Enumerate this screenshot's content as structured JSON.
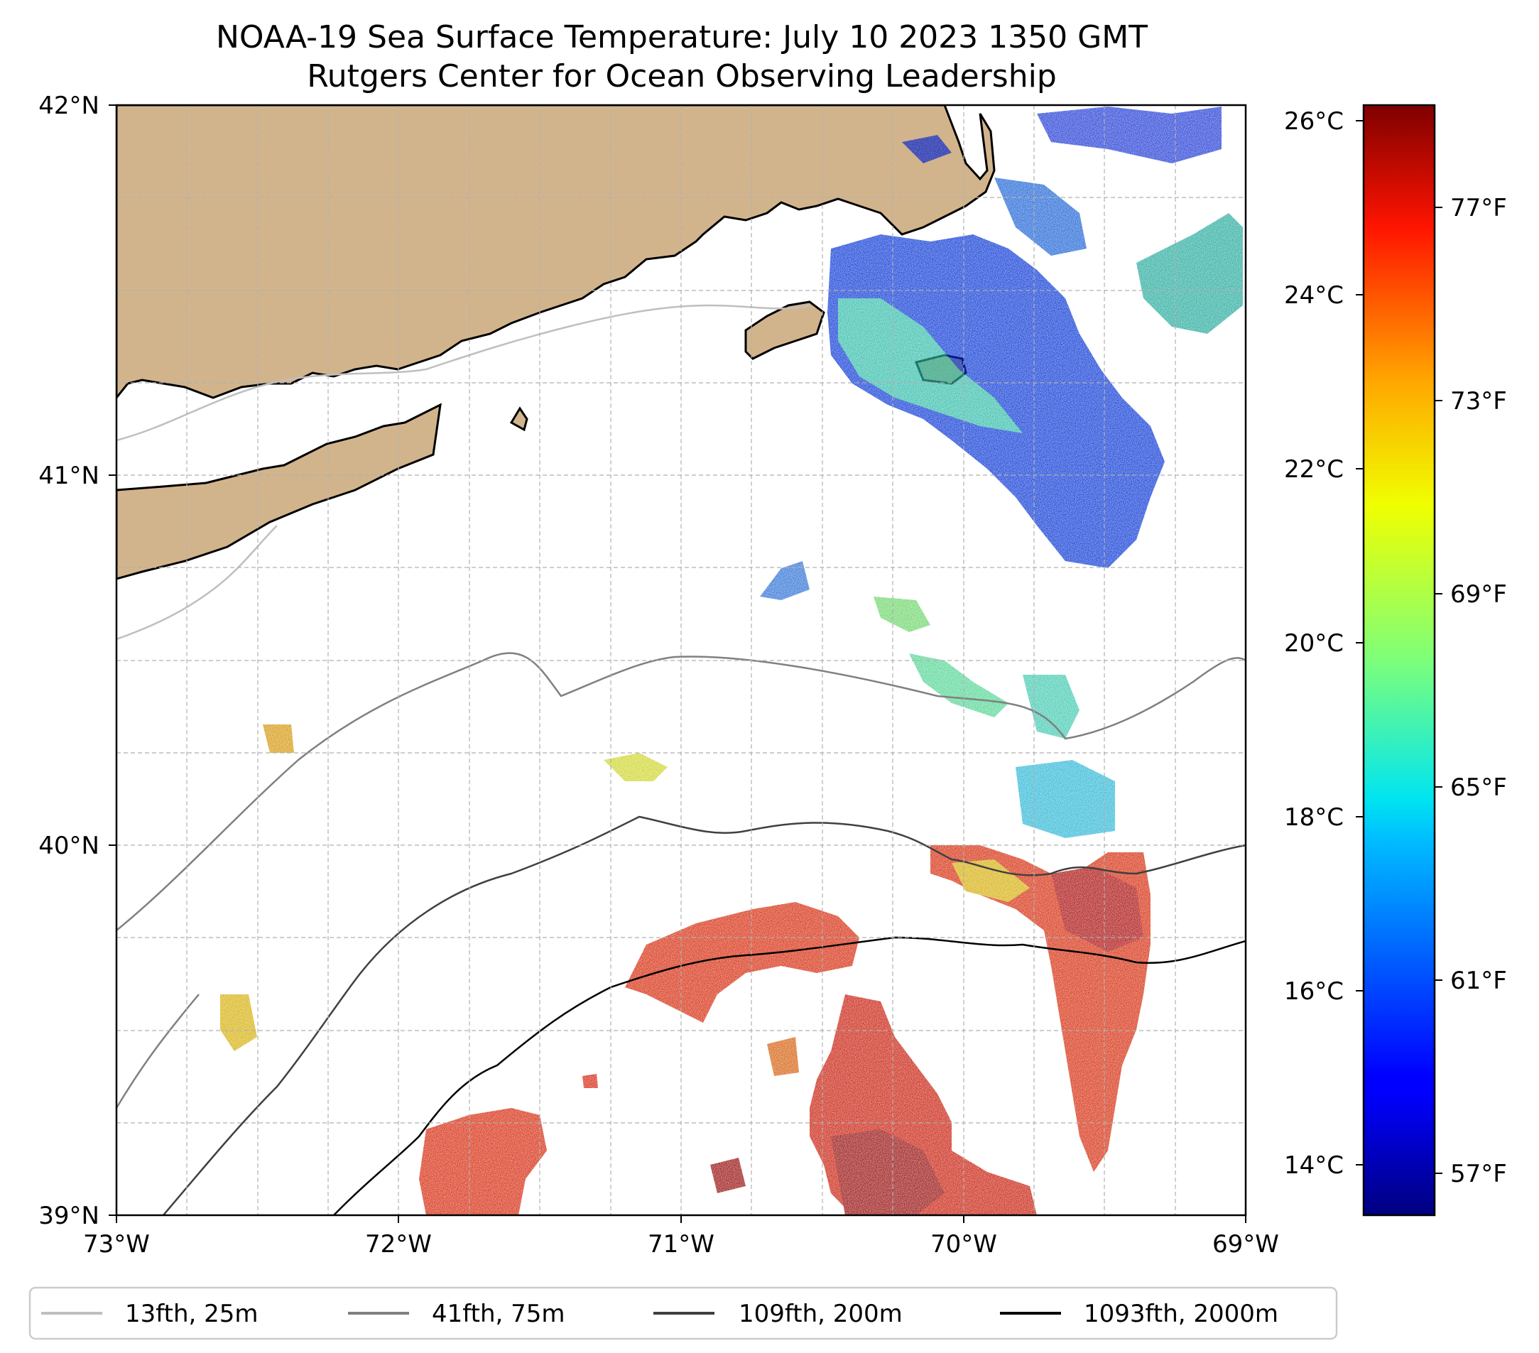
{
  "title": {
    "line1": "NOAA-19 Sea Surface Temperature: July 10 2023 1350 GMT",
    "line2": "Rutgers Center for Ocean Observing Leadership"
  },
  "axes": {
    "lat_labels": [
      "42°N",
      "41°N",
      "40°N",
      "39°N"
    ],
    "lon_labels": [
      "73°W",
      "72°W",
      "71°W",
      "70°W",
      "69°W"
    ]
  },
  "colorbar": {
    "celsius_labels": [
      "26°C",
      "24°C",
      "22°C",
      "20°C",
      "18°C",
      "16°C",
      "14°C"
    ],
    "fahrenheit_labels": [
      "77°F",
      "73°F",
      "69°F",
      "65°F",
      "61°F",
      "57°F"
    ],
    "colormap": "jet"
  },
  "legend": {
    "items": [
      {
        "label": "13fth, 25m",
        "color": "#bfbfbf"
      },
      {
        "label": "41fth, 75m",
        "color": "#808080"
      },
      {
        "label": "109fth, 200m",
        "color": "#404040"
      },
      {
        "label": "1093fth, 2000m",
        "color": "#000000"
      }
    ]
  },
  "colors": {
    "land": "#d2b48c",
    "grid": "#b0b0b0"
  }
}
